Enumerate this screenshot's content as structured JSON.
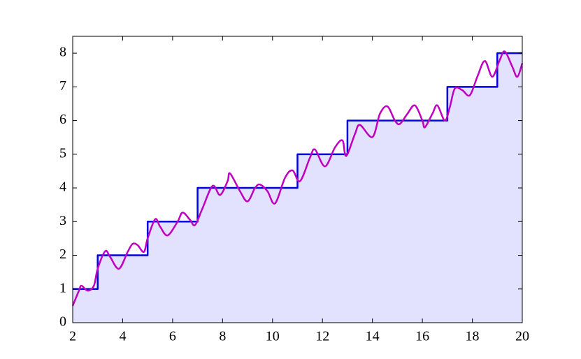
{
  "chart_data": {
    "type": "line",
    "xlim": [
      2,
      20
    ],
    "ylim": [
      0,
      8.5
    ],
    "xticks": [
      2,
      4,
      6,
      8,
      10,
      12,
      14,
      16,
      18,
      20
    ],
    "yticks": [
      0,
      1,
      2,
      3,
      4,
      5,
      6,
      7,
      8
    ],
    "series": [
      {
        "color": "#0000dd",
        "fill_color": "#e2e2ff",
        "drawstyle": "steps-post",
        "x": [
          2,
          3,
          5,
          7,
          11,
          13,
          17,
          19,
          20
        ],
        "values": [
          1,
          2,
          3,
          4,
          5,
          6,
          7,
          8,
          8
        ]
      },
      {
        "color": "#c000c0",
        "drawstyle": "smooth",
        "x": [
          2,
          2.25,
          2.35,
          2.6,
          2.85,
          3.0,
          3.3,
          3.5,
          3.85,
          4.2,
          4.4,
          4.6,
          4.85,
          5.0,
          5.3,
          5.5,
          5.8,
          6.2,
          6.4,
          6.7,
          6.9,
          7.2,
          7.6,
          7.9,
          8.2,
          8.3,
          8.7,
          9.0,
          9.3,
          9.5,
          9.8,
          10.1,
          10.5,
          10.8,
          11.1,
          11.5,
          11.7,
          12.1,
          12.5,
          12.8,
          12.95,
          13.3,
          13.5,
          14.0,
          14.3,
          14.6,
          14.9,
          15.1,
          15.4,
          15.7,
          16.0,
          16.1,
          16.4,
          16.6,
          16.9,
          17.1,
          17.3,
          17.6,
          17.9,
          18.2,
          18.5,
          18.8,
          19.1,
          19.3,
          19.6,
          19.8,
          20
        ],
        "values": [
          0.5,
          0.95,
          1.1,
          0.95,
          1.1,
          1.6,
          2.12,
          1.95,
          1.6,
          2.1,
          2.34,
          2.3,
          2.1,
          2.5,
          3.07,
          2.85,
          2.59,
          3.0,
          3.27,
          3.05,
          2.9,
          3.4,
          4.06,
          3.79,
          4.2,
          4.43,
          3.9,
          3.6,
          4.0,
          4.1,
          3.9,
          3.54,
          4.3,
          4.52,
          4.2,
          4.9,
          5.14,
          4.64,
          5.2,
          5.41,
          4.95,
          5.6,
          5.87,
          5.51,
          6.2,
          6.42,
          6.0,
          5.9,
          6.2,
          6.45,
          6.0,
          5.8,
          6.2,
          6.45,
          6.0,
          6.4,
          6.95,
          6.9,
          6.75,
          7.3,
          7.77,
          7.3,
          7.8,
          8.05,
          7.6,
          7.3,
          7.7
        ]
      }
    ]
  }
}
